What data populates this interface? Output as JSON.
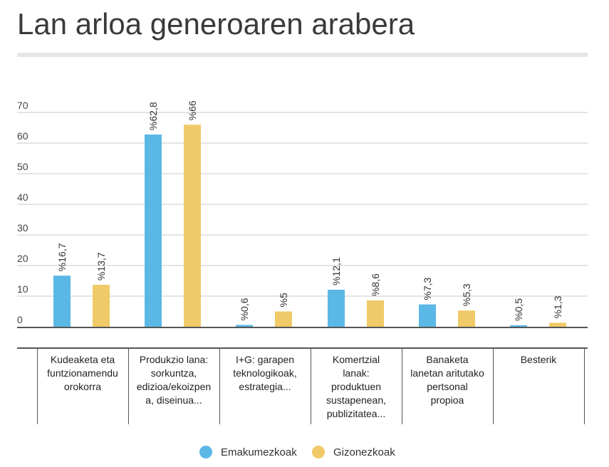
{
  "title": "Lan arloa generoaren arabera",
  "colors": {
    "women": "#5BB8E6",
    "men": "#F0CA69",
    "grid": "#c8c8c8",
    "axis": "#555555"
  },
  "legend": {
    "women": "Emakumezkoak",
    "men": "Gizonezkoak"
  },
  "chart_data": {
    "type": "bar",
    "categories": [
      "Kudeaketa eta funtzionamendu orokorra",
      "Produkzio lana: sorkuntza, edizioa/ekoizpena, diseinua...",
      "I+G: garapen teknologikoak, estrategia...",
      "Komertzial lanak: produktuen sustapenean, publizitatea...",
      "Banaketa lanetan aritutako pertsonal propioa",
      "Besterik"
    ],
    "series": [
      {
        "name": "Emakumezkoak",
        "values": [
          16.7,
          62.8,
          0.6,
          12.1,
          7.3,
          0.5
        ],
        "labels": [
          "%16,7",
          "%62,8",
          "%0,6",
          "%12,1",
          "%7,3",
          "%0,5"
        ]
      },
      {
        "name": "Gizonezkoak",
        "values": [
          13.7,
          66,
          5,
          8.6,
          5.3,
          1.3
        ],
        "labels": [
          "%13,7",
          "%66",
          "%5",
          "%8,6",
          "%5,3",
          "%1,3"
        ]
      }
    ],
    "yticks": [
      0,
      10,
      20,
      30,
      40,
      50,
      60,
      70
    ],
    "ylim": [
      0,
      70
    ],
    "grid": true,
    "legend_position": "bottom"
  },
  "category_cells": [
    "Kudeaketa eta\nfuntzionamendu\norokorra",
    "Produkzio lana:\nsorkuntza,\nedizioa/ekoizpen\na, diseinua...",
    "I+G: garapen\nteknologikoak,\nestrategia...",
    "Komertzial\nlanak:\nproduktuen\nsustapenean,\npublizitatea...",
    "Banaketa\nlanetan aritutako\npertsonal\npropioa",
    "Besterik"
  ]
}
